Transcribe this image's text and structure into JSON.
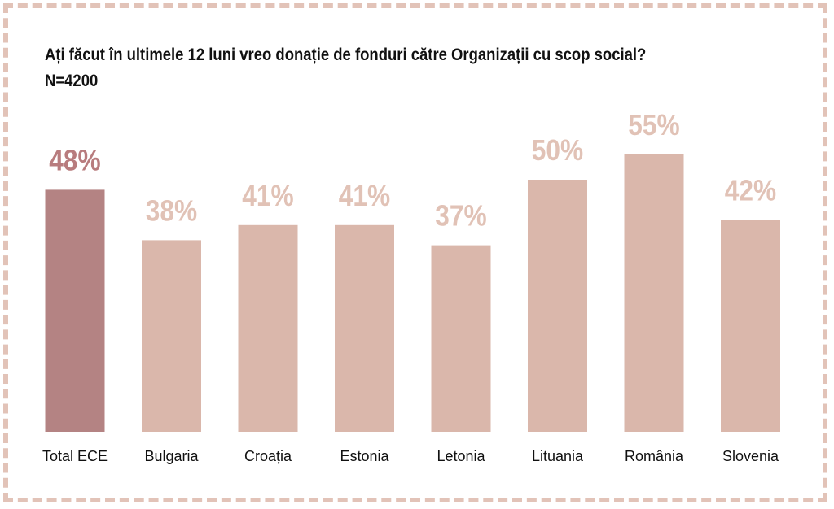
{
  "chart_data": {
    "type": "bar",
    "title": "Ați făcut în ultimele 12 luni vreo donație de fonduri către Organizații cu scop social?",
    "subtitle": "N=4200",
    "xlabel": "",
    "ylabel": "",
    "ylim": [
      0,
      55
    ],
    "grid": false,
    "legend": "none",
    "categories": [
      "Total ECE",
      "Bulgaria",
      "Croația",
      "Estonia",
      "Letonia",
      "Lituania",
      "România",
      "Slovenia"
    ],
    "values": [
      48,
      38,
      41,
      41,
      37,
      50,
      55,
      42
    ],
    "value_labels": [
      "48%",
      "38%",
      "41%",
      "41%",
      "37%",
      "50%",
      "55%",
      "42%"
    ],
    "colors": {
      "highlight_bar": "#b48383",
      "bar": "#dab7ab",
      "highlight_label": "#b87c7e",
      "label": "#e1c2b6",
      "border": "#e2c3b8"
    },
    "highlight_index": 0
  }
}
